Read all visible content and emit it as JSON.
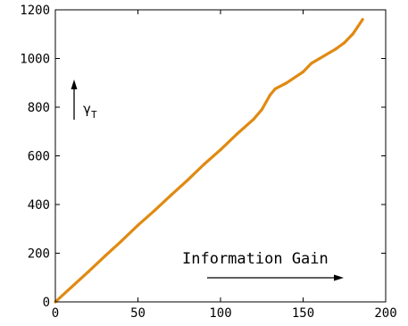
{
  "chart_data": {
    "type": "line",
    "title": "",
    "xlabel": "",
    "ylabel": "",
    "xlim": [
      0,
      200
    ],
    "ylim": [
      0,
      1200
    ],
    "x_ticks": [
      "0",
      "50",
      "100",
      "150",
      "200"
    ],
    "y_ticks": [
      "0",
      "200",
      "400",
      "600",
      "800",
      "1000",
      "1200"
    ],
    "grid": false,
    "series": [
      {
        "color": "#e08a12",
        "x": [
          0,
          10,
          20,
          30,
          40,
          50,
          60,
          70,
          80,
          90,
          100,
          110,
          120,
          125,
          130,
          133,
          140,
          150,
          155,
          160,
          170,
          175,
          180,
          183,
          186
        ],
        "y": [
          0,
          62,
          124,
          188,
          250,
          315,
          375,
          438,
          500,
          565,
          625,
          690,
          750,
          790,
          850,
          875,
          900,
          945,
          980,
          1000,
          1040,
          1065,
          1100,
          1130,
          1160
        ]
      }
    ],
    "annotations": {
      "gamma_symbol": "γ",
      "gamma_subscript": "T",
      "info_gain_label": "Information Gain"
    }
  }
}
